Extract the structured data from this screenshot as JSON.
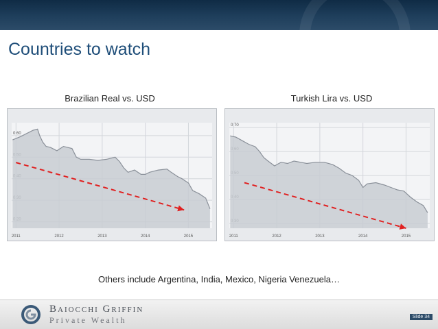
{
  "slide": {
    "title": "Countries to watch",
    "others_text": "Others include Argentina, India, Mexico, Nigeria Venezuela…",
    "slide_number": "Slide 34"
  },
  "brand": {
    "line1": "Baiocchi Griffin",
    "line2": "Private Wealth"
  },
  "colors": {
    "header_dark": "#0f2b45",
    "title_blue": "#1f4e79",
    "price_fill": "#c8ccd2",
    "price_line": "#8a9099",
    "trend_arrow": "#e02020"
  },
  "chart_data": [
    {
      "type": "area",
      "title": "Brazilian Real vs. USD",
      "ylim": [
        0.17,
        0.66
      ],
      "xlim": [
        2010.9,
        2015.55
      ],
      "y_ticks": [
        "0.60",
        "0.50",
        "0.40",
        "0.30",
        "0.20"
      ],
      "y_tick_values": [
        0.6,
        0.5,
        0.4,
        0.3,
        0.2
      ],
      "x_ticks": [
        "2011",
        "2012",
        "2013",
        "2014",
        "2015"
      ],
      "x_tick_values": [
        2011,
        2012,
        2013,
        2014,
        2015
      ],
      "grid": true,
      "series": [
        {
          "x": [
            2010.92,
            2011.1,
            2011.25,
            2011.4,
            2011.5,
            2011.55,
            2011.62,
            2011.7,
            2011.8,
            2011.95,
            2012.1,
            2012.3,
            2012.4,
            2012.5,
            2012.7,
            2012.9,
            2013.1,
            2013.3,
            2013.4,
            2013.5,
            2013.6,
            2013.75,
            2013.9,
            2014.0,
            2014.1,
            2014.3,
            2014.5,
            2014.6,
            2014.75,
            2014.85,
            2015.0,
            2015.1,
            2015.25,
            2015.4,
            2015.5
          ],
          "values": [
            0.58,
            0.595,
            0.61,
            0.625,
            0.63,
            0.6,
            0.57,
            0.55,
            0.545,
            0.53,
            0.55,
            0.54,
            0.5,
            0.49,
            0.49,
            0.485,
            0.49,
            0.5,
            0.48,
            0.45,
            0.43,
            0.44,
            0.42,
            0.42,
            0.43,
            0.44,
            0.445,
            0.43,
            0.41,
            0.4,
            0.38,
            0.345,
            0.33,
            0.31,
            0.26
          ]
        }
      ],
      "annotations": [
        {
          "type": "arrow",
          "style": "dashed",
          "from": [
            2011.0,
            0.475
          ],
          "to": [
            2014.9,
            0.255
          ]
        }
      ]
    },
    {
      "type": "area",
      "title": "Turkish Lira vs. USD",
      "ylim": [
        0.28,
        0.72
      ],
      "xlim": [
        2010.9,
        2015.55
      ],
      "y_ticks": [
        "0.70",
        "0.60",
        "0.50",
        "0.40",
        "0.30"
      ],
      "y_tick_values": [
        0.7,
        0.6,
        0.5,
        0.4,
        0.3
      ],
      "x_ticks": [
        "2011",
        "2012",
        "2013",
        "2014",
        "2015"
      ],
      "x_tick_values": [
        2011,
        2012,
        2013,
        2014,
        2015
      ],
      "grid": true,
      "series": [
        {
          "x": [
            2010.92,
            2011.05,
            2011.2,
            2011.35,
            2011.5,
            2011.6,
            2011.7,
            2011.8,
            2011.95,
            2012.1,
            2012.25,
            2012.4,
            2012.55,
            2012.7,
            2012.9,
            2013.1,
            2013.3,
            2013.45,
            2013.6,
            2013.75,
            2013.9,
            2014.0,
            2014.1,
            2014.3,
            2014.5,
            2014.65,
            2014.8,
            2014.95,
            2015.1,
            2015.25,
            2015.4,
            2015.5
          ],
          "values": [
            0.665,
            0.66,
            0.645,
            0.63,
            0.62,
            0.6,
            0.575,
            0.56,
            0.54,
            0.555,
            0.55,
            0.56,
            0.555,
            0.55,
            0.555,
            0.555,
            0.545,
            0.53,
            0.51,
            0.5,
            0.48,
            0.45,
            0.465,
            0.47,
            0.46,
            0.45,
            0.44,
            0.435,
            0.41,
            0.39,
            0.375,
            0.345
          ]
        }
      ],
      "annotations": [
        {
          "type": "arrow",
          "style": "dashed",
          "from": [
            2011.25,
            0.47
          ],
          "to": [
            2015.0,
            0.28
          ]
        }
      ]
    }
  ]
}
